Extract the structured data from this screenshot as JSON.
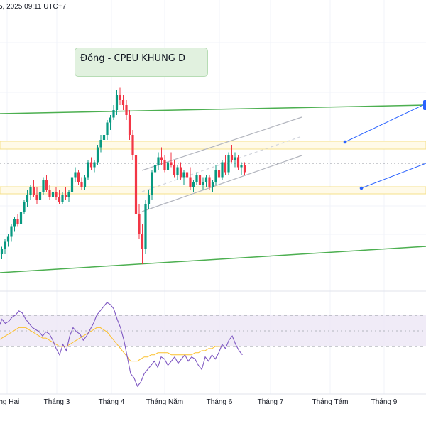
{
  "header": {
    "timestamp": "5, 2025 09:11 UTC+7"
  },
  "annotation": {
    "text": "Đồng - CPEU KHUNG D"
  },
  "colors": {
    "up": "#089981",
    "down": "#f23645",
    "trendline": "#4caf50",
    "channel": "#b2b5be",
    "zone": "#fff9e0",
    "zone_border": "#f5dd7a",
    "projection": "#2962ff",
    "rsi_line": "#7e57c2",
    "rsi_ma": "#fbc02d",
    "rsi_band": "#ede7f6"
  },
  "chart_data": {
    "type": "candlestick",
    "x_tick_labels": [
      "áng Hai",
      "Tháng 3",
      "Tháng 4",
      "Tháng Năm",
      "Tháng 6",
      "Tháng 7",
      "Tháng Tám",
      "Tháng 9"
    ],
    "candles": [
      [
        0.78,
        0.79,
        0.76,
        0.77
      ],
      [
        0.77,
        0.785,
        0.76,
        0.78
      ],
      [
        0.78,
        0.8,
        0.77,
        0.795
      ],
      [
        0.795,
        0.81,
        0.785,
        0.805
      ],
      [
        0.805,
        0.83,
        0.795,
        0.825
      ],
      [
        0.825,
        0.845,
        0.815,
        0.84
      ],
      [
        0.84,
        0.85,
        0.825,
        0.83
      ],
      [
        0.83,
        0.86,
        0.825,
        0.855
      ],
      [
        0.855,
        0.88,
        0.85,
        0.875
      ],
      [
        0.875,
        0.9,
        0.865,
        0.89
      ],
      [
        0.89,
        0.91,
        0.88,
        0.905
      ],
      [
        0.905,
        0.92,
        0.885,
        0.89
      ],
      [
        0.89,
        0.905,
        0.87,
        0.88
      ],
      [
        0.88,
        0.9,
        0.87,
        0.895
      ],
      [
        0.895,
        0.925,
        0.89,
        0.92
      ],
      [
        0.92,
        0.93,
        0.895,
        0.9
      ],
      [
        0.9,
        0.91,
        0.88,
        0.885
      ],
      [
        0.885,
        0.9,
        0.875,
        0.895
      ],
      [
        0.895,
        0.905,
        0.88,
        0.885
      ],
      [
        0.885,
        0.9,
        0.87,
        0.875
      ],
      [
        0.875,
        0.895,
        0.87,
        0.89
      ],
      [
        0.89,
        0.905,
        0.88,
        0.885
      ],
      [
        0.885,
        0.9,
        0.875,
        0.895
      ],
      [
        0.895,
        0.93,
        0.89,
        0.925
      ],
      [
        0.925,
        0.945,
        0.915,
        0.935
      ],
      [
        0.935,
        0.94,
        0.91,
        0.915
      ],
      [
        0.915,
        0.925,
        0.9,
        0.905
      ],
      [
        0.905,
        0.93,
        0.9,
        0.925
      ],
      [
        0.925,
        0.96,
        0.92,
        0.955
      ],
      [
        0.955,
        0.965,
        0.94,
        0.945
      ],
      [
        0.945,
        0.96,
        0.935,
        0.955
      ],
      [
        0.955,
        0.99,
        0.95,
        0.985
      ],
      [
        0.985,
        1.01,
        0.975,
        1.0
      ],
      [
        1.0,
        1.02,
        0.99,
        1.01
      ],
      [
        1.01,
        1.04,
        1.0,
        1.035
      ],
      [
        1.035,
        1.05,
        1.02,
        1.045
      ],
      [
        1.045,
        1.07,
        1.04,
        1.06
      ],
      [
        1.06,
        1.1,
        1.05,
        1.09
      ],
      [
        1.09,
        1.105,
        1.07,
        1.08
      ],
      [
        1.08,
        1.09,
        1.06,
        1.07
      ],
      [
        1.07,
        1.08,
        1.04,
        1.05
      ],
      [
        1.05,
        1.06,
        1.0,
        1.01
      ],
      [
        1.01,
        1.02,
        0.96,
        0.97
      ],
      [
        0.97,
        0.98,
        0.84,
        0.85
      ],
      [
        0.85,
        0.87,
        0.8,
        0.81
      ],
      [
        0.81,
        0.83,
        0.75,
        0.78
      ],
      [
        0.78,
        0.88,
        0.77,
        0.87
      ],
      [
        0.87,
        0.9,
        0.86,
        0.89
      ],
      [
        0.89,
        0.94,
        0.88,
        0.935
      ],
      [
        0.935,
        0.96,
        0.92,
        0.95
      ],
      [
        0.95,
        0.975,
        0.94,
        0.965
      ],
      [
        0.965,
        0.985,
        0.95,
        0.96
      ],
      [
        0.96,
        0.97,
        0.935,
        0.94
      ],
      [
        0.94,
        0.96,
        0.93,
        0.955
      ],
      [
        0.955,
        0.975,
        0.945,
        0.95
      ],
      [
        0.95,
        0.96,
        0.925,
        0.93
      ],
      [
        0.93,
        0.95,
        0.92,
        0.945
      ],
      [
        0.945,
        0.955,
        0.92,
        0.925
      ],
      [
        0.925,
        0.94,
        0.91,
        0.935
      ],
      [
        0.935,
        0.95,
        0.92,
        0.925
      ],
      [
        0.925,
        0.945,
        0.9,
        0.905
      ],
      [
        0.905,
        0.92,
        0.895,
        0.915
      ],
      [
        0.915,
        0.935,
        0.91,
        0.93
      ],
      [
        0.93,
        0.94,
        0.9,
        0.91
      ],
      [
        0.91,
        0.925,
        0.9,
        0.915
      ],
      [
        0.915,
        0.93,
        0.905,
        0.925
      ],
      [
        0.925,
        0.93,
        0.9,
        0.905
      ],
      [
        0.905,
        0.92,
        0.895,
        0.915
      ],
      [
        0.915,
        0.95,
        0.91,
        0.94
      ],
      [
        0.94,
        0.955,
        0.92,
        0.925
      ],
      [
        0.925,
        0.96,
        0.92,
        0.955
      ],
      [
        0.955,
        0.97,
        0.93,
        0.935
      ],
      [
        0.935,
        0.975,
        0.93,
        0.97
      ],
      [
        0.97,
        0.99,
        0.955,
        0.96
      ],
      [
        0.96,
        0.975,
        0.945,
        0.965
      ],
      [
        0.965,
        0.97,
        0.94,
        0.945
      ],
      [
        0.945,
        0.955,
        0.93,
        0.95
      ],
      [
        0.95,
        0.955,
        0.93,
        0.935
      ]
    ],
    "rsi": [
      58,
      62,
      60,
      61,
      63,
      64,
      66,
      65,
      62,
      60,
      58,
      57,
      56,
      54,
      56,
      55,
      52,
      48,
      45,
      50,
      47,
      54,
      58,
      56,
      55,
      52,
      54,
      57,
      60,
      64,
      66,
      68,
      70,
      69,
      67,
      62,
      58,
      52,
      44,
      36,
      34,
      30,
      32,
      36,
      38,
      40,
      42,
      39,
      44,
      43,
      40,
      42,
      44,
      41,
      43,
      45,
      42,
      44,
      43,
      40,
      38,
      44,
      42,
      45,
      43,
      46,
      50,
      48,
      52,
      54,
      50,
      47,
      45
    ],
    "rsi_ma": [
      52,
      53,
      54,
      55,
      56,
      57,
      58,
      58,
      58,
      57,
      56,
      55,
      54,
      53,
      53,
      52,
      51,
      50,
      49,
      49,
      49,
      50,
      51,
      52,
      53,
      54,
      55,
      56,
      57,
      58,
      58,
      57,
      56,
      54,
      52,
      50,
      48,
      46,
      44,
      42,
      42,
      42,
      43,
      44,
      44,
      45,
      45,
      46,
      46,
      46,
      46,
      45,
      45,
      45,
      45,
      45,
      45,
      45,
      46,
      46,
      47,
      47,
      48,
      48,
      49,
      49,
      49
    ]
  }
}
